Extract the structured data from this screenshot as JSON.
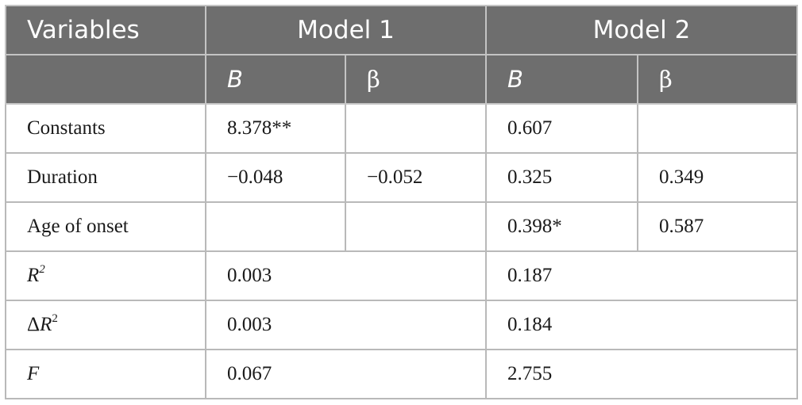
{
  "table": {
    "header_row1": {
      "variables": "Variables",
      "model1": "Model 1",
      "model2": "Model 2"
    },
    "header_row2": {
      "m1_b": "B",
      "m1_beta": "β",
      "m2_b": "B",
      "m2_beta": "β"
    },
    "rows": [
      {
        "label": "Constants",
        "m1_b": "8.378**",
        "m1_beta": "",
        "m2_b": "0.607",
        "m2_beta": ""
      },
      {
        "label": "Duration",
        "m1_b": "−0.048",
        "m1_beta": "−0.052",
        "m2_b": "0.325",
        "m2_beta": "0.349"
      },
      {
        "label": "Age of onset",
        "m1_b": "",
        "m1_beta": "",
        "m2_b": "0.398*",
        "m2_beta": "0.587"
      }
    ],
    "summary": [
      {
        "label_prefix": "",
        "label_var": "R",
        "label_sup": "2",
        "model1": "0.003",
        "model2": "0.187"
      },
      {
        "label_prefix": "Δ",
        "label_var": "R",
        "label_sup": "2",
        "model1": "0.003",
        "model2": "0.184"
      },
      {
        "label_prefix": "",
        "label_var": "F",
        "label_sup": "",
        "model1": "0.067",
        "model2": "2.755"
      }
    ]
  }
}
